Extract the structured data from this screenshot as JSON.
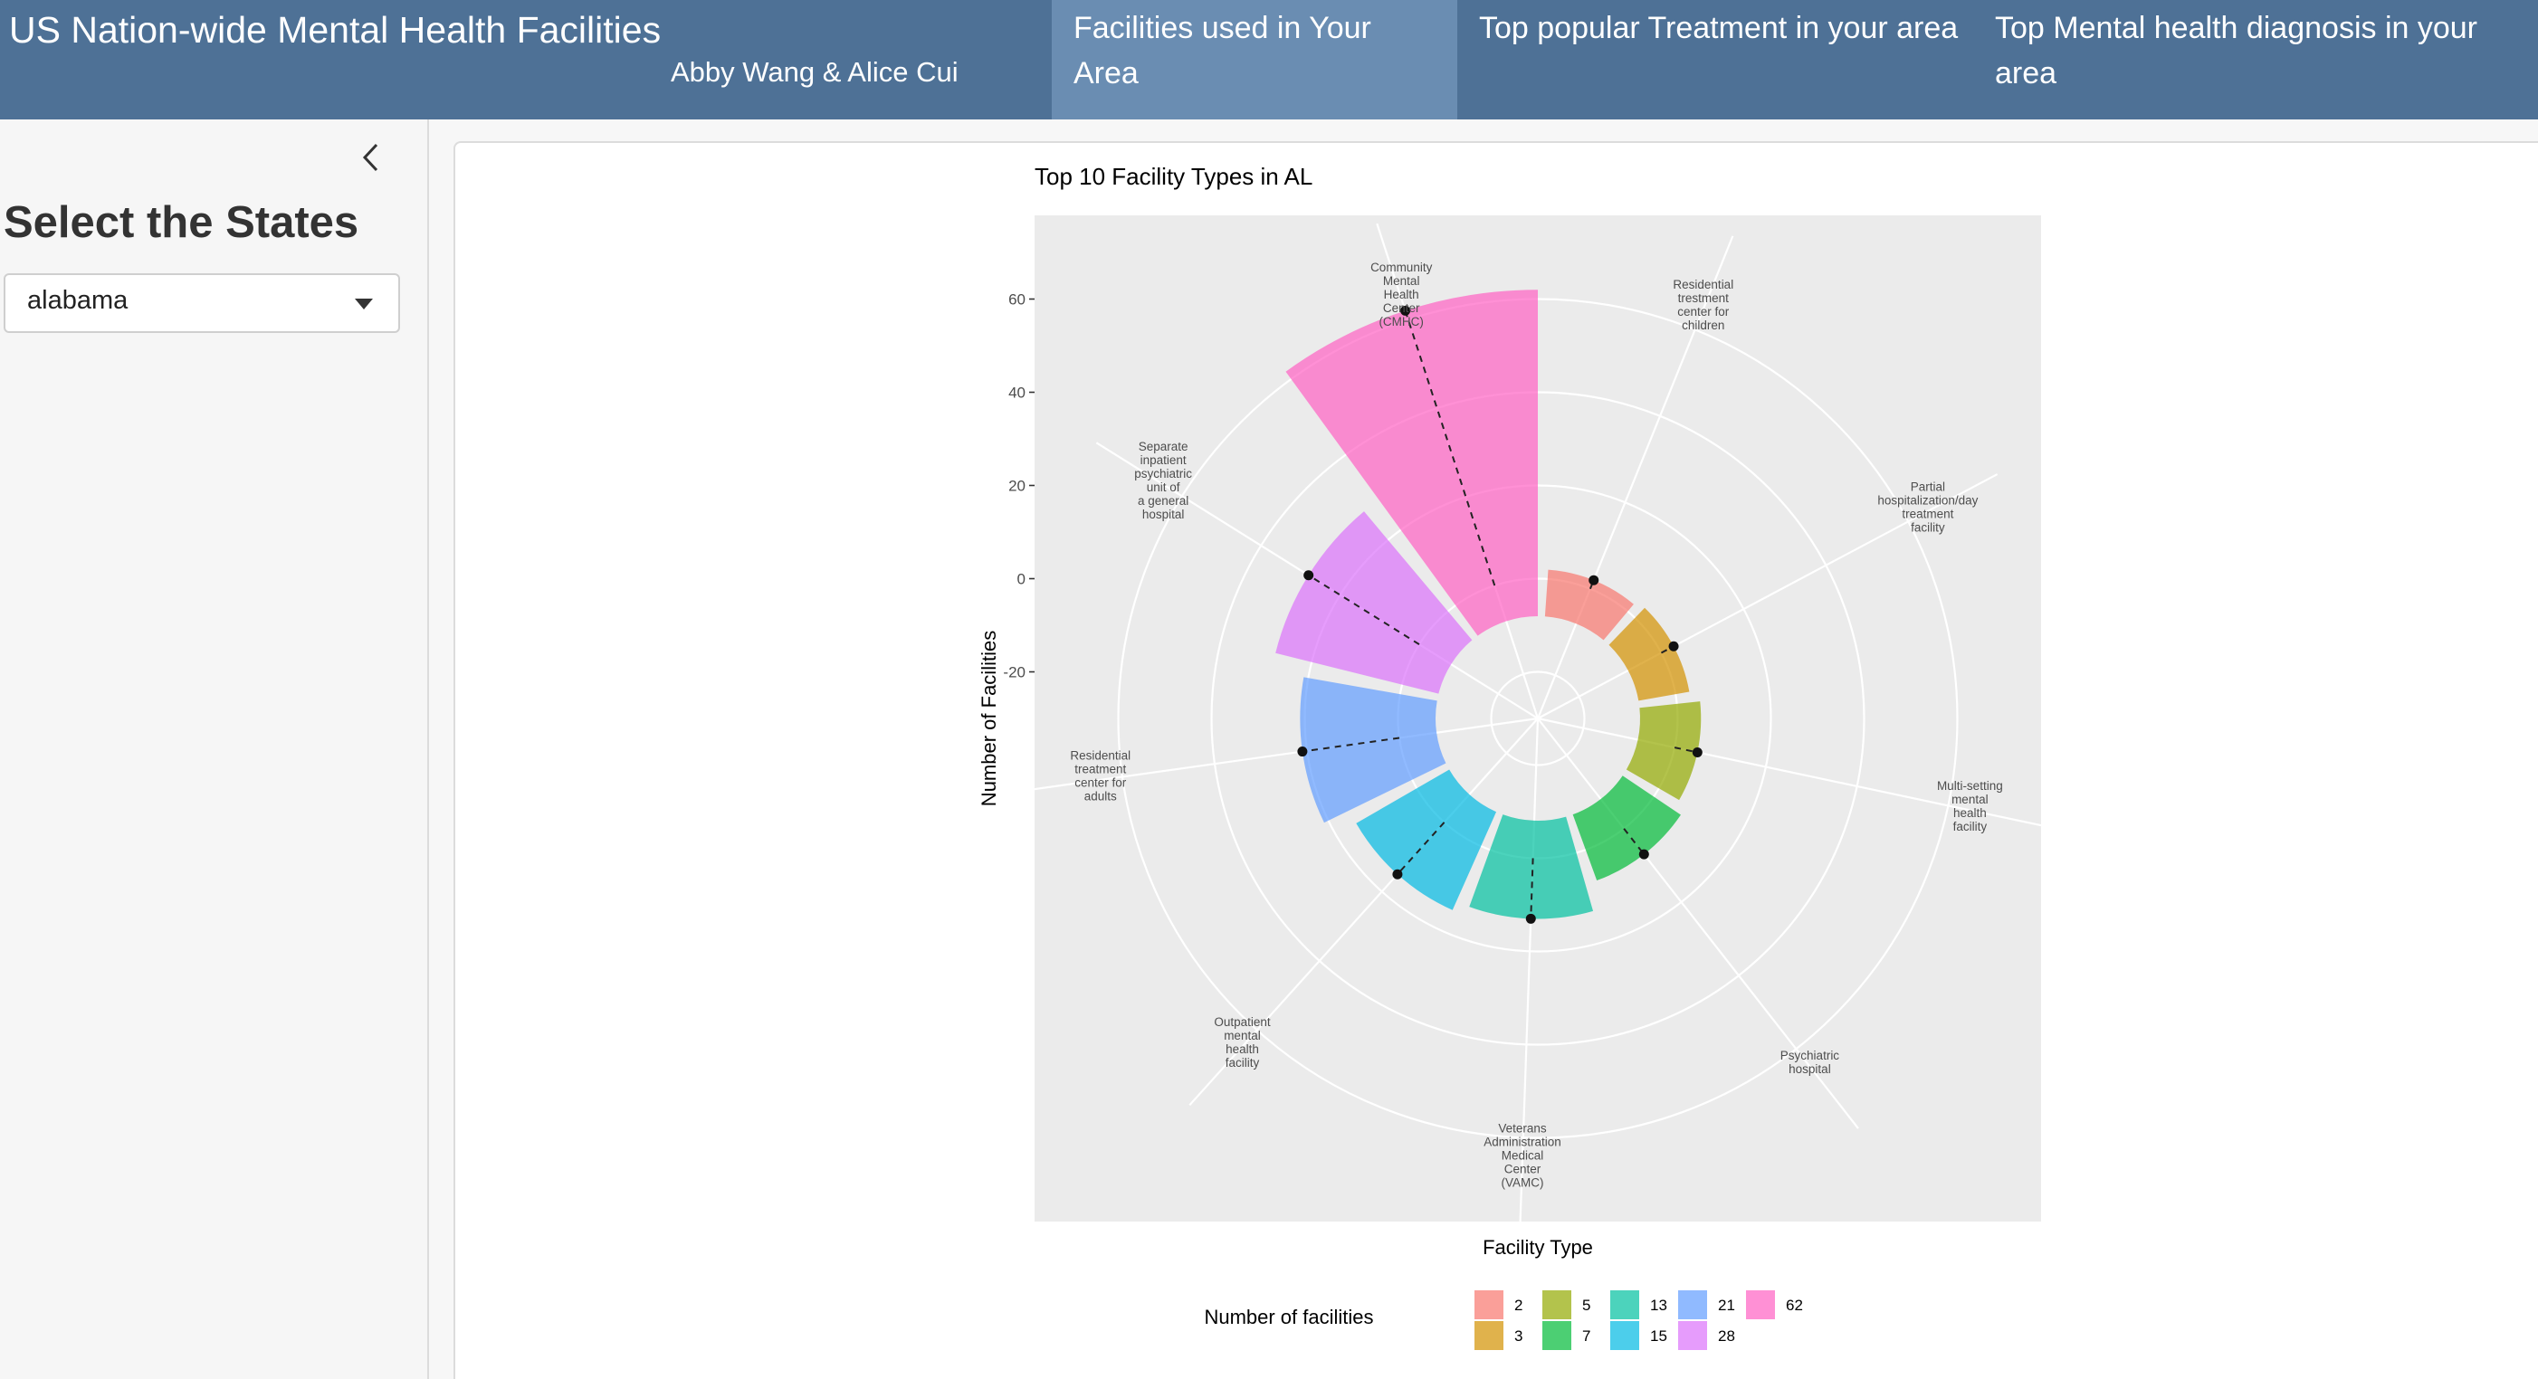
{
  "header": {
    "title": "US Nation-wide Mental Health Facilities",
    "subtitle": "Abby Wang & Alice Cui",
    "tabs": [
      {
        "label": "Facilities used in Your Area",
        "active": true
      },
      {
        "label": "Top popular Treatment in your area",
        "active": false
      },
      {
        "label": "Top Mental health diagnosis in your area",
        "active": false
      }
    ]
  },
  "sidebar": {
    "heading": "Select the States",
    "select_value": "alabama"
  },
  "colors": {
    "navbar": "#4e7196",
    "active_tab": "#6a8db2",
    "plot_panel": "#ebebeb"
  },
  "chart_data": {
    "type": "bar",
    "coord": "polar",
    "title": "Top 10 Facility Types in AL",
    "xlabel": "Facility Type",
    "ylabel": "Number of Facilities",
    "ylim": [
      -30,
      70
    ],
    "yticks": [
      -20,
      0,
      20,
      40,
      60
    ],
    "grid": true,
    "categories": [
      {
        "lines": [
          "Residential",
          "trestment",
          "center for",
          "children"
        ]
      },
      {
        "lines": [
          "Partial",
          "hospitalization/day",
          "treatment",
          "facility"
        ]
      },
      {
        "lines": [
          "Multi-setting",
          "mental",
          "health",
          "facility"
        ]
      },
      {
        "lines": [
          "Psychiatric",
          "hospital"
        ]
      },
      {
        "lines": [
          "Veterans",
          "Administration",
          "Medical",
          "Center",
          "(VAMC)"
        ]
      },
      {
        "lines": [
          "Outpatient",
          "mental",
          "health",
          "facility"
        ]
      },
      {
        "lines": [
          "Residential",
          "treatment",
          "center for",
          "adults"
        ]
      },
      {
        "lines": [
          "Separate",
          "inpatient",
          "psychiatric",
          "unit of",
          "a general",
          "hospital"
        ]
      },
      {
        "lines": [
          "Community",
          "Mental",
          "Health",
          "Center",
          "(CMHC)"
        ]
      }
    ],
    "bars": [
      {
        "value": 2,
        "color": "#f8766d"
      },
      {
        "value": 3,
        "color": "#d39200"
      },
      {
        "value": 5,
        "color": "#93aa00"
      },
      {
        "value": 7,
        "color": "#00ba38"
      },
      {
        "value": 13,
        "color": "#00c19f"
      },
      {
        "value": 15,
        "color": "#00b9e3"
      },
      {
        "value": 21,
        "color": "#619cff"
      },
      {
        "value": 28,
        "color": "#db72fb"
      },
      {
        "value": 62,
        "color": "#ff61c3"
      }
    ],
    "legend": {
      "title": "Number of facilities",
      "position": "bottom",
      "items": [
        {
          "label": "2",
          "color": "#f8766d"
        },
        {
          "label": "3",
          "color": "#d39200"
        },
        {
          "label": "5",
          "color": "#93aa00"
        },
        {
          "label": "7",
          "color": "#00ba38"
        },
        {
          "label": "13",
          "color": "#00c19f"
        },
        {
          "label": "15",
          "color": "#00b9e3"
        },
        {
          "label": "21",
          "color": "#619cff"
        },
        {
          "label": "28",
          "color": "#db72fb"
        },
        {
          "label": "62",
          "color": "#ff61c3"
        }
      ]
    }
  }
}
